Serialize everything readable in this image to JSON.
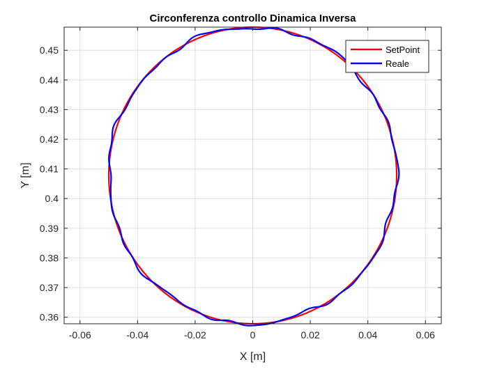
{
  "chart_data": {
    "type": "line",
    "title": "Circonferenza controllo Dinamica Inversa",
    "xlabel": "X [m]",
    "ylabel": "Y [m]",
    "xlim": [
      -0.0655,
      0.0655
    ],
    "ylim": [
      0.3578,
      0.4578
    ],
    "xticks": [
      -0.06,
      -0.04,
      -0.02,
      0,
      0.02,
      0.04,
      0.06
    ],
    "xtick_labels": [
      "-0.06",
      "-0.04",
      "-0.02",
      "0",
      "0.02",
      "0.04",
      "0.06"
    ],
    "yticks": [
      0.36,
      0.37,
      0.38,
      0.39,
      0.4,
      0.41,
      0.42,
      0.43,
      0.44,
      0.45
    ],
    "ytick_labels": [
      "0.36",
      "0.37",
      "0.38",
      "0.39",
      "0.4",
      "0.41",
      "0.42",
      "0.43",
      "0.44",
      "0.45"
    ],
    "grid": true,
    "legend": {
      "placement": "top-right"
    },
    "series": [
      {
        "name": "SetPoint",
        "color": "#ff0000",
        "shape": "circle",
        "center": [
          0.0,
          0.4078
        ],
        "radius": 0.05,
        "points": 361
      },
      {
        "name": "Reale",
        "color": "#0000ff",
        "shape": "circle",
        "center": [
          0.0,
          0.4078
        ],
        "radius": 0.05,
        "points": 361,
        "ripple_amplitude": 0.00045
      }
    ]
  }
}
